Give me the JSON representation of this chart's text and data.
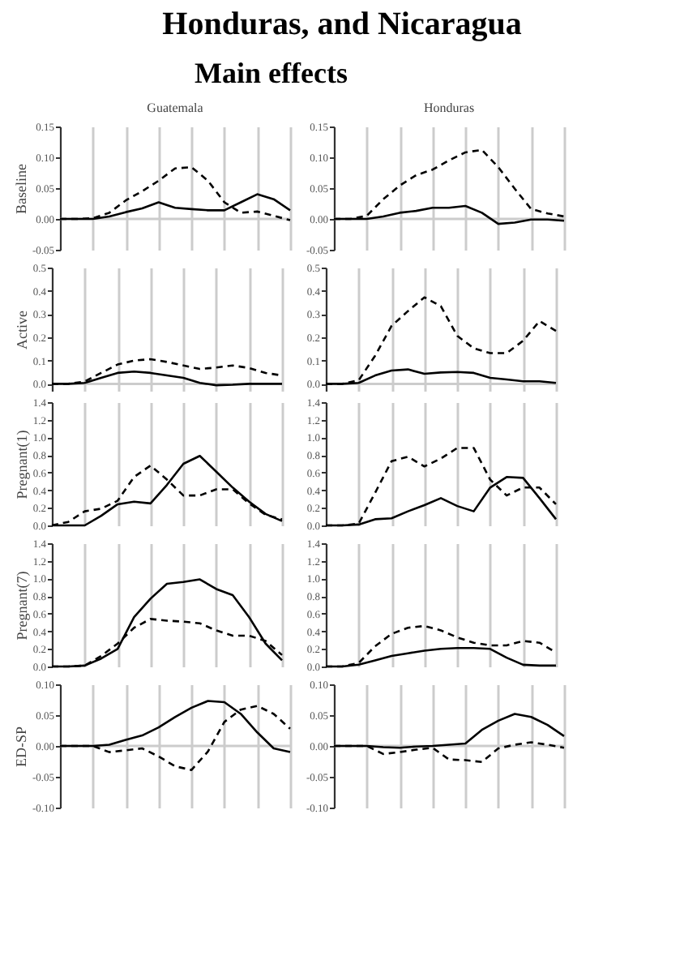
{
  "chart_data": [
    {
      "type": "line",
      "title": "Guatemala",
      "ylabel": "Baseline",
      "annotations": [
        "Honduras, and Nicaragua",
        "Main effects"
      ],
      "categories": [
        null,
        null,
        null,
        null,
        null,
        null,
        null,
        null,
        null,
        null,
        null,
        null,
        null,
        null,
        null
      ],
      "ylim": [
        -0.05,
        0.15
      ],
      "yticks": [
        {
          "value": -0.05,
          "label": "-0.05"
        },
        {
          "value": 0,
          "label": "0.00"
        },
        0.05,
        {
          "value": 0.1,
          "label": "0.10"
        },
        0.15
      ],
      "grid": "x",
      "ref_lines": [
        {
          "axis": "y",
          "value": 0,
          "color": "#cccccc"
        }
      ],
      "series": [
        {
          "color": "#000000",
          "line_style": "solid",
          "values": [
            0,
            0,
            0,
            0.004,
            0.011,
            0.017,
            0.027,
            0.018,
            0.016,
            0.014,
            0.014,
            0.027,
            0.04,
            0.032,
            0.014
          ]
        },
        {
          "color": "#000000",
          "line_style": "dashed",
          "values": [
            0,
            0,
            0.001,
            0.01,
            0.03,
            0.045,
            0.062,
            0.082,
            0.084,
            0.062,
            0.027,
            0.01,
            0.012,
            0.005,
            -0.002
          ]
        }
      ]
    },
    {
      "type": "line",
      "title": "Honduras",
      "categories": [
        null,
        null,
        null,
        null,
        null,
        null,
        null,
        null,
        null,
        null,
        null,
        null,
        null,
        null,
        null
      ],
      "ylim": [
        -0.05,
        0.15
      ],
      "yticks": [
        {
          "value": -0.05,
          "label": "-0.05"
        },
        {
          "value": 0,
          "label": "0.00"
        },
        0.05,
        {
          "value": 0.1,
          "label": "0.10"
        },
        0.15
      ],
      "grid": "x",
      "ref_lines": [
        {
          "axis": "y",
          "value": 0,
          "color": "#cccccc"
        }
      ],
      "series": [
        {
          "color": "#000000",
          "line_style": "solid",
          "values": [
            0,
            0,
            0,
            0.004,
            0.01,
            0.013,
            0.018,
            0.018,
            0.021,
            0.01,
            -0.008,
            -0.006,
            -0.001,
            -0.001,
            -0.003
          ]
        },
        {
          "color": "#000000",
          "line_style": "dashed",
          "values": [
            0,
            0,
            0.005,
            0.032,
            0.054,
            0.071,
            0.08,
            0.095,
            0.108,
            0.112,
            0.084,
            0.049,
            0.016,
            0.009,
            0.004
          ]
        }
      ]
    },
    {
      "type": "line",
      "ylabel": "Active",
      "categories": [
        null,
        null,
        null,
        null,
        null,
        null,
        null,
        null,
        null,
        null,
        null,
        null,
        null,
        null,
        null
      ],
      "ylim": [
        -0.03,
        0.5
      ],
      "yticks": [
        {
          "value": 0,
          "label": "0.0"
        },
        0.1,
        0.2,
        0.3,
        0.4,
        0.5
      ],
      "grid": "x",
      "ref_lines": [
        {
          "axis": "y",
          "value": 0,
          "color": "#cccccc"
        }
      ],
      "series": [
        {
          "color": "#000000",
          "line_style": "solid",
          "values": [
            0,
            0,
            0.004,
            0.026,
            0.047,
            0.053,
            0.047,
            0.036,
            0.026,
            0.004,
            -0.006,
            -0.004,
            0,
            0,
            0
          ]
        },
        {
          "color": "#000000",
          "line_style": "dashed",
          "values": [
            0,
            0,
            0.01,
            0.047,
            0.083,
            0.1,
            0.106,
            0.094,
            0.079,
            0.064,
            0.07,
            0.079,
            0.068,
            0.047,
            0.036
          ]
        }
      ]
    },
    {
      "type": "line",
      "categories": [
        null,
        null,
        null,
        null,
        null,
        null,
        null,
        null,
        null,
        null,
        null,
        null,
        null,
        null,
        null
      ],
      "ylim": [
        -0.03,
        0.5
      ],
      "yticks": [
        {
          "value": 0,
          "label": "0.0"
        },
        0.1,
        0.2,
        0.3,
        0.4,
        0.5
      ],
      "grid": "x",
      "ref_lines": [
        {
          "axis": "y",
          "value": 0,
          "color": "#cccccc"
        }
      ],
      "series": [
        {
          "color": "#000000",
          "line_style": "solid",
          "values": [
            0,
            0,
            0.004,
            0.036,
            0.057,
            0.062,
            0.043,
            0.049,
            0.051,
            0.047,
            0.026,
            0.019,
            0.011,
            0.011,
            0.004
          ]
        },
        {
          "color": "#000000",
          "line_style": "dashed",
          "values": [
            0,
            0,
            0.015,
            0.121,
            0.249,
            0.313,
            0.372,
            0.334,
            0.206,
            0.153,
            0.132,
            0.132,
            0.185,
            0.27,
            0.228
          ]
        }
      ]
    },
    {
      "type": "line",
      "ylabel": "Pregnant(1)",
      "categories": [
        null,
        null,
        null,
        null,
        null,
        null,
        null,
        null,
        null,
        null,
        null,
        null,
        null,
        null,
        null
      ],
      "ylim": [
        0,
        1.4
      ],
      "yticks": [
        {
          "value": 0,
          "label": "0.0"
        },
        0.2,
        0.4,
        0.6,
        0.8,
        {
          "value": 1,
          "label": "1.0"
        },
        1.2,
        1.4
      ],
      "grid": "x",
      "series": [
        {
          "color": "#000000",
          "line_style": "solid",
          "values": [
            0,
            0,
            0,
            0.11,
            0.24,
            0.27,
            0.25,
            0.46,
            0.7,
            0.79,
            0.61,
            0.43,
            0.27,
            0.13,
            0.05
          ]
        },
        {
          "color": "#000000",
          "line_style": "dashed",
          "values": [
            0,
            0.04,
            0.16,
            0.19,
            0.28,
            0.55,
            0.68,
            0.52,
            0.34,
            0.34,
            0.41,
            0.41,
            0.25,
            0.12,
            0.07
          ]
        }
      ]
    },
    {
      "type": "line",
      "categories": [
        null,
        null,
        null,
        null,
        null,
        null,
        null,
        null,
        null,
        null,
        null,
        null,
        null,
        null,
        null
      ],
      "ylim": [
        0,
        1.4
      ],
      "yticks": [
        {
          "value": 0,
          "label": "0.0"
        },
        0.2,
        0.4,
        0.6,
        0.8,
        {
          "value": 1,
          "label": "1.0"
        },
        1.2,
        1.4
      ],
      "grid": "x",
      "series": [
        {
          "color": "#000000",
          "line_style": "solid",
          "values": [
            0,
            0,
            0.01,
            0.07,
            0.08,
            0.16,
            0.23,
            0.31,
            0.22,
            0.16,
            0.43,
            0.55,
            0.54,
            0.31,
            0.07
          ]
        },
        {
          "color": "#000000",
          "line_style": "dashed",
          "values": [
            0,
            0,
            0.02,
            0.37,
            0.73,
            0.78,
            0.67,
            0.76,
            0.88,
            0.88,
            0.52,
            0.34,
            0.43,
            0.43,
            0.24
          ]
        }
      ]
    },
    {
      "type": "line",
      "ylabel": "Pregnant(7)",
      "categories": [
        null,
        null,
        null,
        null,
        null,
        null,
        null,
        null,
        null,
        null,
        null,
        null,
        null,
        null,
        null
      ],
      "ylim": [
        0,
        1.4
      ],
      "yticks": [
        {
          "value": 0,
          "label": "0.0"
        },
        0.2,
        0.4,
        0.6,
        0.8,
        {
          "value": 1,
          "label": "1.0"
        },
        1.2,
        1.4
      ],
      "grid": "x",
      "series": [
        {
          "color": "#000000",
          "line_style": "solid",
          "values": [
            0,
            0,
            0.01,
            0.09,
            0.2,
            0.56,
            0.77,
            0.94,
            0.96,
            0.99,
            0.88,
            0.81,
            0.56,
            0.26,
            0.07
          ]
        },
        {
          "color": "#000000",
          "line_style": "dashed",
          "values": [
            0,
            0,
            0.01,
            0.12,
            0.26,
            0.44,
            0.54,
            0.52,
            0.51,
            0.49,
            0.41,
            0.35,
            0.35,
            0.29,
            0.13
          ]
        }
      ]
    },
    {
      "type": "line",
      "categories": [
        null,
        null,
        null,
        null,
        null,
        null,
        null,
        null,
        null,
        null,
        null,
        null,
        null,
        null,
        null
      ],
      "ylim": [
        0,
        1.4
      ],
      "yticks": [
        {
          "value": 0,
          "label": "0.0"
        },
        0.2,
        0.4,
        0.6,
        0.8,
        {
          "value": 1,
          "label": "1.0"
        },
        1.2,
        1.4
      ],
      "grid": "x",
      "series": [
        {
          "color": "#000000",
          "line_style": "solid",
          "values": [
            0,
            0,
            0.02,
            0.07,
            0.12,
            0.15,
            0.18,
            0.2,
            0.21,
            0.21,
            0.2,
            0.1,
            0.02,
            0.01,
            0.01
          ]
        },
        {
          "color": "#000000",
          "line_style": "dashed",
          "values": [
            0,
            0,
            0.04,
            0.23,
            0.37,
            0.44,
            0.46,
            0.41,
            0.33,
            0.27,
            0.24,
            0.24,
            0.29,
            0.27,
            0.16
          ]
        }
      ]
    },
    {
      "type": "line",
      "ylabel": "ED-SP",
      "categories": [
        null,
        null,
        null,
        null,
        null,
        null,
        null,
        null,
        null,
        null,
        null,
        null,
        null,
        null,
        null
      ],
      "ylim": [
        -0.1,
        0.1
      ],
      "yticks": [
        {
          "value": -0.1,
          "label": "-0.10"
        },
        -0.05,
        {
          "value": 0,
          "label": "0.00"
        },
        0.05,
        {
          "value": 0.1,
          "label": "0.10"
        }
      ],
      "grid": "x",
      "ref_lines": [
        {
          "axis": "y",
          "value": 0,
          "color": "#cccccc"
        }
      ],
      "series": [
        {
          "color": "#000000",
          "line_style": "solid",
          "values": [
            0,
            0,
            0,
            0.002,
            0.01,
            0.017,
            0.03,
            0.047,
            0.062,
            0.073,
            0.071,
            0.052,
            0.022,
            -0.004,
            -0.01
          ]
        },
        {
          "color": "#000000",
          "line_style": "dashed",
          "values": [
            0,
            0,
            0,
            -0.01,
            -0.007,
            -0.004,
            -0.017,
            -0.033,
            -0.039,
            -0.009,
            0.039,
            0.059,
            0.065,
            0.052,
            0.028
          ]
        }
      ]
    },
    {
      "type": "line",
      "categories": [
        null,
        null,
        null,
        null,
        null,
        null,
        null,
        null,
        null,
        null,
        null,
        null,
        null,
        null,
        null
      ],
      "ylim": [
        -0.1,
        0.1
      ],
      "yticks": [
        {
          "value": -0.1,
          "label": "-0.10"
        },
        -0.05,
        {
          "value": 0,
          "label": "0.00"
        },
        0.05,
        {
          "value": 0.1,
          "label": "0.10"
        }
      ],
      "grid": "x",
      "ref_lines": [
        {
          "axis": "y",
          "value": 0,
          "color": "#cccccc"
        }
      ],
      "series": [
        {
          "color": "#000000",
          "line_style": "solid",
          "values": [
            0,
            0,
            0,
            -0.002,
            -0.003,
            -0.001,
            0,
            0.002,
            0.004,
            0.026,
            0.041,
            0.052,
            0.047,
            0.034,
            0.016
          ]
        },
        {
          "color": "#000000",
          "line_style": "dashed",
          "values": [
            0,
            0,
            0,
            -0.013,
            -0.01,
            -0.006,
            -0.003,
            -0.022,
            -0.023,
            -0.026,
            -0.004,
            0.002,
            0.006,
            0.002,
            -0.003
          ]
        }
      ]
    }
  ]
}
